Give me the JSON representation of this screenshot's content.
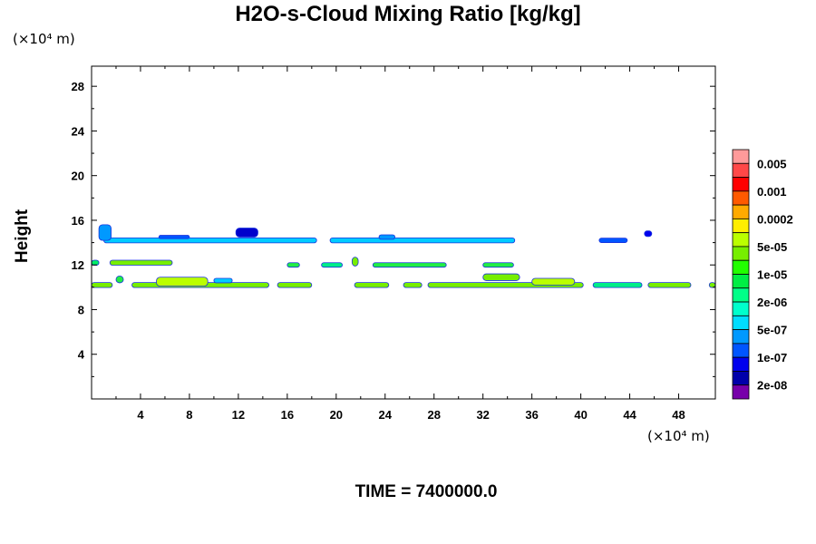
{
  "chart_data": {
    "type": "heatmap",
    "title": "H2O-s-Cloud Mixing Ratio [kg/kg]",
    "xlabel": "",
    "ylabel": "Height",
    "x_unit": "(×10⁴ m)",
    "y_unit": "(×10⁴ m)",
    "xlim": [
      0,
      51
    ],
    "ylim": [
      0,
      29.8
    ],
    "xticks": [
      "4",
      "8",
      "12",
      "16",
      "20",
      "24",
      "28",
      "32",
      "36",
      "40",
      "44",
      "48"
    ],
    "yticks": [
      "4",
      "8",
      "12",
      "16",
      "20",
      "24",
      "28"
    ],
    "footer": "TIME = 7400000.0",
    "colorbar": {
      "colors": [
        "#ff9a9a",
        "#ff4848",
        "#ff0000",
        "#ff5a00",
        "#ffaa00",
        "#ffee00",
        "#bbff00",
        "#77ee00",
        "#22ff00",
        "#00ee44",
        "#00ff88",
        "#00ffcc",
        "#00ddff",
        "#0099ff",
        "#0055ff",
        "#0000ee",
        "#0000aa",
        "#7700aa"
      ],
      "labels": [
        "0.005",
        "0.001",
        "0.0002",
        "5e-05",
        "1e-05",
        "2e-06",
        "5e-07",
        "1e-07",
        "2e-08"
      ]
    },
    "features": [
      {
        "x0": 1.0,
        "x1": 18.4,
        "y": 14.2,
        "h": 0.45,
        "c": "#00ccff"
      },
      {
        "x0": 19.5,
        "x1": 34.6,
        "y": 14.2,
        "h": 0.45,
        "c": "#00ccff"
      },
      {
        "x0": 41.5,
        "x1": 43.8,
        "y": 14.2,
        "h": 0.4,
        "c": "#0055ff"
      },
      {
        "x0": 0.6,
        "x1": 1.6,
        "y": 14.9,
        "h": 1.4,
        "c": "#0099ff"
      },
      {
        "x0": 11.8,
        "x1": 13.6,
        "y": 14.9,
        "h": 0.8,
        "c": "#0000cc"
      },
      {
        "x0": 5.5,
        "x1": 8.0,
        "y": 14.5,
        "h": 0.3,
        "c": "#0055ff"
      },
      {
        "x0": 23.5,
        "x1": 24.8,
        "y": 14.5,
        "h": 0.4,
        "c": "#0099ff"
      },
      {
        "x0": 45.2,
        "x1": 45.8,
        "y": 14.8,
        "h": 0.5,
        "c": "#0000ee"
      },
      {
        "x0": 0,
        "x1": 0.6,
        "y": 12.2,
        "h": 0.45,
        "c": "#00ee66"
      },
      {
        "x0": 1.5,
        "x1": 6.6,
        "y": 12.2,
        "h": 0.45,
        "c": "#77ee00"
      },
      {
        "x0": 16.0,
        "x1": 17.0,
        "y": 12.0,
        "h": 0.4,
        "c": "#22ee44"
      },
      {
        "x0": 18.8,
        "x1": 20.5,
        "y": 12.0,
        "h": 0.4,
        "c": "#00ee88"
      },
      {
        "x0": 21.3,
        "x1": 21.8,
        "y": 12.3,
        "h": 0.8,
        "c": "#77ee00"
      },
      {
        "x0": 23.0,
        "x1": 29.0,
        "y": 12.0,
        "h": 0.4,
        "c": "#22ee44"
      },
      {
        "x0": 32.0,
        "x1": 34.5,
        "y": 12.0,
        "h": 0.4,
        "c": "#22ee44"
      },
      {
        "x0": 0,
        "x1": 1.7,
        "y": 10.2,
        "h": 0.45,
        "c": "#77ee00"
      },
      {
        "x0": 3.3,
        "x1": 14.5,
        "y": 10.2,
        "h": 0.45,
        "c": "#77ee00"
      },
      {
        "x0": 5.3,
        "x1": 9.5,
        "y": 10.5,
        "h": 0.8,
        "c": "#bbff00"
      },
      {
        "x0": 15.2,
        "x1": 18.0,
        "y": 10.2,
        "h": 0.45,
        "c": "#77ee00"
      },
      {
        "x0": 21.5,
        "x1": 24.3,
        "y": 10.2,
        "h": 0.45,
        "c": "#77ee00"
      },
      {
        "x0": 25.5,
        "x1": 27.0,
        "y": 10.2,
        "h": 0.45,
        "c": "#77ee00"
      },
      {
        "x0": 27.5,
        "x1": 40.2,
        "y": 10.2,
        "h": 0.45,
        "c": "#77ee00"
      },
      {
        "x0": 32.0,
        "x1": 35.0,
        "y": 10.9,
        "h": 0.6,
        "c": "#77ee00"
      },
      {
        "x0": 36.0,
        "x1": 39.5,
        "y": 10.5,
        "h": 0.6,
        "c": "#bbff00"
      },
      {
        "x0": 41.0,
        "x1": 45.0,
        "y": 10.2,
        "h": 0.45,
        "c": "#00ee88"
      },
      {
        "x0": 45.5,
        "x1": 49.0,
        "y": 10.2,
        "h": 0.45,
        "c": "#77ee00"
      },
      {
        "x0": 50.5,
        "x1": 51.0,
        "y": 10.2,
        "h": 0.45,
        "c": "#77ee00"
      },
      {
        "x0": 2.0,
        "x1": 2.6,
        "y": 10.7,
        "h": 0.6,
        "c": "#22ee44"
      },
      {
        "x0": 10.0,
        "x1": 11.5,
        "y": 10.6,
        "h": 0.4,
        "c": "#00ccff"
      }
    ]
  }
}
